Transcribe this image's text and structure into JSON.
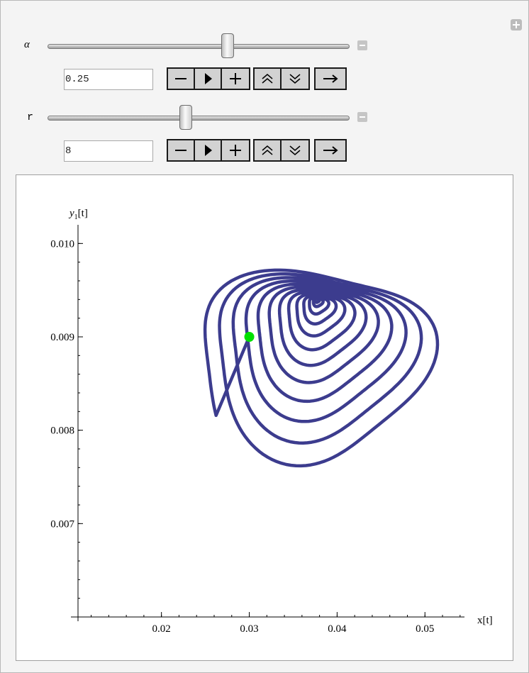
{
  "controls": {
    "alpha": {
      "label": "α",
      "value": "0.25",
      "slider_position": 0.6,
      "buttons": [
        "minus-icon",
        "play-icon",
        "plus-icon",
        "faster-icon",
        "slower-icon",
        "direction-icon"
      ]
    },
    "r": {
      "label": "r",
      "value": "8",
      "slider_position": 0.46,
      "buttons": [
        "minus-icon",
        "play-icon",
        "plus-icon",
        "faster-icon",
        "slower-icon",
        "direction-icon"
      ]
    }
  },
  "chart_data": {
    "type": "line",
    "xlabel": "x[t]",
    "ylabel": "y",
    "ylabel_subscript": "1",
    "ylabel_suffix": "[t]",
    "xlim": [
      0.0105,
      0.0545
    ],
    "ylim": [
      0.006,
      0.0102
    ],
    "x_ticks": [
      {
        "value": 0.02,
        "label": "0.02"
      },
      {
        "value": 0.03,
        "label": "0.03"
      },
      {
        "value": 0.04,
        "label": "0.04"
      },
      {
        "value": 0.05,
        "label": "0.05"
      }
    ],
    "y_ticks": [
      {
        "value": 0.007,
        "label": "0.007"
      },
      {
        "value": 0.008,
        "label": "0.008"
      },
      {
        "value": 0.009,
        "label": "0.009"
      },
      {
        "value": 0.01,
        "label": "0.010"
      }
    ],
    "series": [
      {
        "color": "#3c3c8e",
        "description": "spiral trajectory converging to a focus",
        "start": {
          "x": 0.03,
          "y": 0.009
        },
        "focus": {
          "x": 0.0377,
          "y": 0.0094
        },
        "outer_extent": {
          "x_min": 0.0237,
          "x_max": 0.0513,
          "y_min": 0.00767,
          "y_max": 0.0098
        }
      }
    ],
    "marker": {
      "x": 0.03,
      "y": 0.009,
      "color": "#00e000"
    }
  }
}
